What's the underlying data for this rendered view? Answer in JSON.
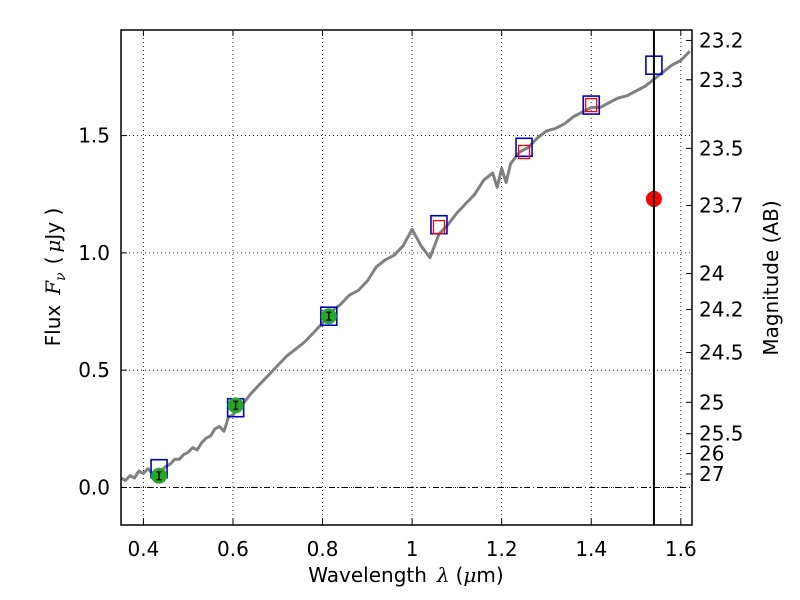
{
  "chart_data": {
    "type": "scatter",
    "xlabel": {
      "text": "Wavelength",
      "symbol": "λ",
      "unit_open": "(",
      "mu": "μ",
      "unit_rest": "m)"
    },
    "ylabel": {
      "text": "Flux",
      "symbol": "F",
      "subscript": "ν",
      "unit_open": "(",
      "mu": "μ",
      "unit_rest": "Jy )"
    },
    "y2label": "Magnitude (AB)",
    "xlim": [
      0.35,
      1.625
    ],
    "ylim": [
      -0.16,
      1.95
    ],
    "grid": true,
    "x_ticks": [
      {
        "value": 0.4,
        "label": "0.4"
      },
      {
        "value": 0.6,
        "label": "0.6"
      },
      {
        "value": 0.8,
        "label": "0.8"
      },
      {
        "value": 1.0,
        "label": "1"
      },
      {
        "value": 1.2,
        "label": "1.2"
      },
      {
        "value": 1.4,
        "label": "1.4"
      },
      {
        "value": 1.6,
        "label": "1.6"
      }
    ],
    "y_ticks": [
      {
        "value": 0.0,
        "label": "0.0"
      },
      {
        "value": 0.5,
        "label": "0.5"
      },
      {
        "value": 1.0,
        "label": "1.0"
      },
      {
        "value": 1.5,
        "label": "1.5"
      }
    ],
    "mag_ticks": [
      {
        "value": 23.2,
        "label": "23.2"
      },
      {
        "value": 23.3,
        "label": "23.3"
      },
      {
        "value": 23.5,
        "label": "23.5"
      },
      {
        "value": 23.7,
        "label": "23.7"
      },
      {
        "value": 24,
        "label": "24"
      },
      {
        "value": 24.2,
        "label": "24.2"
      },
      {
        "value": 24.5,
        "label": "24.5"
      },
      {
        "value": 25,
        "label": "25"
      },
      {
        "value": 25.5,
        "label": "25.5"
      },
      {
        "value": 26,
        "label": "26"
      },
      {
        "value": 27,
        "label": "27"
      }
    ],
    "vline_x": 1.54,
    "zero_line_y": 0.0,
    "series": [
      {
        "name": "model spectrum",
        "kind": "line",
        "color": "#808080",
        "x": [
          0.35,
          0.36,
          0.37,
          0.38,
          0.39,
          0.4,
          0.41,
          0.42,
          0.43,
          0.44,
          0.45,
          0.46,
          0.47,
          0.48,
          0.49,
          0.5,
          0.51,
          0.52,
          0.53,
          0.54,
          0.55,
          0.56,
          0.57,
          0.58,
          0.59,
          0.6,
          0.62,
          0.64,
          0.66,
          0.68,
          0.7,
          0.72,
          0.74,
          0.76,
          0.78,
          0.8,
          0.82,
          0.84,
          0.86,
          0.88,
          0.9,
          0.92,
          0.94,
          0.96,
          0.98,
          1.0,
          1.02,
          1.04,
          1.06,
          1.08,
          1.1,
          1.12,
          1.14,
          1.16,
          1.18,
          1.19,
          1.2,
          1.21,
          1.22,
          1.24,
          1.26,
          1.28,
          1.3,
          1.32,
          1.34,
          1.36,
          1.38,
          1.4,
          1.42,
          1.44,
          1.46,
          1.48,
          1.5,
          1.52,
          1.54,
          1.56,
          1.58,
          1.6,
          1.62
        ],
        "y": [
          0.04,
          0.03,
          0.05,
          0.04,
          0.07,
          0.06,
          0.08,
          0.06,
          0.07,
          0.07,
          0.09,
          0.1,
          0.12,
          0.12,
          0.14,
          0.15,
          0.17,
          0.16,
          0.19,
          0.21,
          0.22,
          0.25,
          0.26,
          0.24,
          0.3,
          0.31,
          0.35,
          0.4,
          0.44,
          0.48,
          0.52,
          0.56,
          0.59,
          0.62,
          0.66,
          0.7,
          0.75,
          0.78,
          0.82,
          0.84,
          0.88,
          0.94,
          0.97,
          0.99,
          1.03,
          1.1,
          1.03,
          0.98,
          1.08,
          1.12,
          1.17,
          1.21,
          1.25,
          1.31,
          1.34,
          1.28,
          1.36,
          1.3,
          1.38,
          1.43,
          1.45,
          1.49,
          1.52,
          1.53,
          1.55,
          1.58,
          1.6,
          1.62,
          1.62,
          1.64,
          1.66,
          1.67,
          1.69,
          1.71,
          1.74,
          1.77,
          1.8,
          1.82,
          1.86
        ]
      },
      {
        "name": "model fluxes",
        "kind": "marker",
        "marker": "square",
        "color": "#0000cc",
        "x": [
          0.435,
          0.606,
          0.814,
          1.06,
          1.25,
          1.4,
          1.54
        ],
        "y": [
          0.08,
          0.34,
          0.73,
          1.12,
          1.45,
          1.63,
          1.8
        ]
      },
      {
        "name": "upper limits",
        "kind": "marker",
        "marker": "red-square",
        "color": "#ff0000",
        "x": [
          1.06,
          1.25,
          1.4
        ],
        "y": [
          1.11,
          1.43,
          1.63
        ]
      },
      {
        "name": "observed photometry",
        "kind": "marker",
        "marker": "circle",
        "color": "#22aa22",
        "x": [
          0.435,
          0.606,
          0.814
        ],
        "y": [
          0.05,
          0.35,
          0.73
        ]
      },
      {
        "name": "outlier point",
        "kind": "marker",
        "marker": "circle",
        "color": "#ff0000",
        "x": [
          1.54
        ],
        "y": [
          1.23
        ]
      }
    ]
  }
}
